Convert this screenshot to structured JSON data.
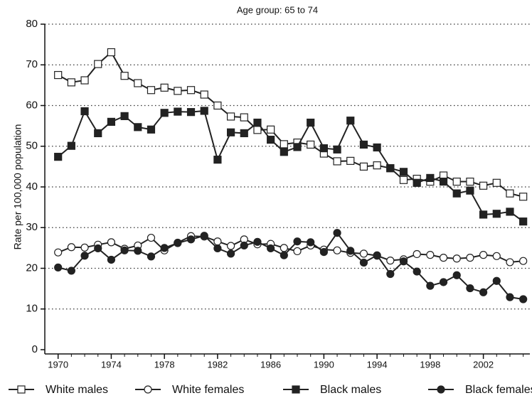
{
  "chart_data": {
    "type": "line",
    "title": "Age group: 65 to 74",
    "y_label": "Rate per 100,000 population",
    "x": [
      1970,
      1971,
      1972,
      1973,
      1974,
      1975,
      1976,
      1977,
      1978,
      1979,
      1980,
      1981,
      1982,
      1983,
      1984,
      1985,
      1986,
      1987,
      1988,
      1989,
      1990,
      1991,
      1992,
      1993,
      1994,
      1995,
      1996,
      1997,
      1998,
      1999,
      2000,
      2001,
      2002,
      2003,
      2004,
      2005
    ],
    "xlim": [
      1969,
      2005.5
    ],
    "xticks": [
      1970,
      1974,
      1978,
      1982,
      1986,
      1990,
      1994,
      1998,
      2002
    ],
    "ylim": [
      0,
      80
    ],
    "yticks": [
      0,
      10,
      20,
      30,
      40,
      50,
      60,
      70,
      80
    ],
    "grid": true,
    "series": [
      {
        "name": "White males",
        "color": "#222222",
        "marker": "square",
        "filled": false,
        "values": [
          67.5,
          65.7,
          66.2,
          70.2,
          73.1,
          67.3,
          65.5,
          63.8,
          64.4,
          63.6,
          63.8,
          62.7,
          60.0,
          57.3,
          57.1,
          54.0,
          54.1,
          50.5,
          50.9,
          50.4,
          48.2,
          46.3,
          46.4,
          45.0,
          45.3,
          44.6,
          41.7,
          42.0,
          41.3,
          42.8,
          41.3,
          41.3,
          40.3,
          41.0,
          38.4,
          37.6
        ]
      },
      {
        "name": "White females",
        "color": "#222222",
        "marker": "circle",
        "filled": false,
        "values": [
          23.9,
          25.2,
          25.1,
          25.8,
          26.4,
          24.8,
          25.6,
          27.5,
          24.4,
          26.3,
          27.9,
          27.8,
          26.6,
          25.5,
          27.1,
          25.9,
          26.0,
          25.0,
          24.2,
          25.6,
          24.6,
          24.4,
          23.8,
          23.6,
          23.1,
          21.9,
          22.2,
          23.5,
          23.3,
          22.6,
          22.4,
          22.6,
          23.3,
          23.0,
          21.5,
          21.8
        ]
      },
      {
        "name": "Black males",
        "color": "#222222",
        "marker": "square",
        "filled": true,
        "values": [
          47.4,
          50.1,
          58.6,
          53.2,
          56.0,
          57.4,
          54.7,
          54.1,
          58.2,
          58.5,
          58.4,
          58.7,
          46.7,
          53.4,
          53.2,
          55.8,
          51.6,
          48.6,
          49.8,
          55.8,
          49.5,
          49.2,
          56.3,
          50.4,
          49.7,
          44.6,
          43.7,
          41.0,
          42.2,
          41.3,
          38.4,
          39.1,
          33.2,
          33.4,
          33.9,
          31.5
        ]
      },
      {
        "name": "Black females",
        "color": "#222222",
        "marker": "circle",
        "filled": true,
        "values": [
          20.2,
          19.4,
          23.1,
          24.9,
          22.1,
          24.4,
          24.3,
          22.9,
          25.0,
          26.2,
          27.1,
          28.0,
          24.9,
          23.6,
          25.6,
          26.5,
          24.9,
          23.2,
          26.6,
          26.4,
          24.0,
          28.7,
          24.3,
          21.4,
          23.2,
          18.6,
          21.7,
          19.2,
          15.7,
          16.6,
          18.3,
          15.1,
          14.1,
          16.9,
          12.9,
          12.4
        ]
      }
    ]
  }
}
